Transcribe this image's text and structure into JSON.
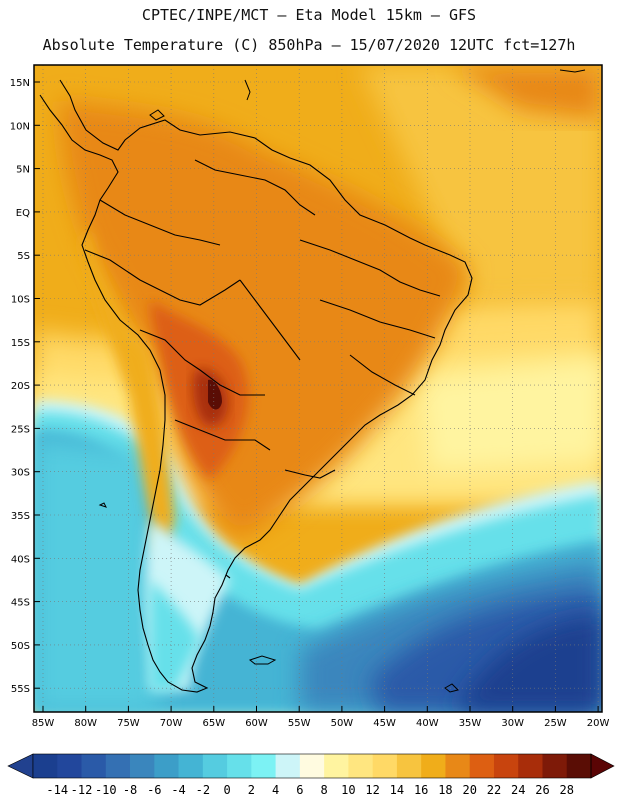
{
  "header": {
    "line1": "CPTEC/INPE/MCT –  Eta Model 15km – GFS",
    "line2": "Absolute Temperature (C) 850hPa – 15/07/2020 12UTC fct=127h"
  },
  "axes": {
    "lat_labels": [
      "15N",
      "10N",
      "5N",
      "EQ",
      "5S",
      "10S",
      "15S",
      "20S",
      "25S",
      "30S",
      "35S",
      "40S",
      "45S",
      "50S",
      "55S"
    ],
    "lon_labels": [
      "85W",
      "80W",
      "75W",
      "70W",
      "65W",
      "60W",
      "55W",
      "50W",
      "45W",
      "40W",
      "35W",
      "30W",
      "25W",
      "20W"
    ]
  },
  "colorbar": {
    "ticks": [
      "-14",
      "-12",
      "-10",
      "-8",
      "-6",
      "-4",
      "-2",
      "0",
      "2",
      "4",
      "6",
      "8",
      "10",
      "12",
      "14",
      "16",
      "18",
      "20",
      "22",
      "24",
      "26",
      "28"
    ],
    "colors": [
      "#1b3f8f",
      "#22479c",
      "#2a5aa8",
      "#3470b3",
      "#3a86bd",
      "#3c9ec8",
      "#44b4d4",
      "#55cce0",
      "#66e0ea",
      "#7cf2f4",
      "#cdf5f8",
      "#fffbe0",
      "#fff4a0",
      "#ffe680",
      "#ffd966",
      "#f7c43f",
      "#f0ad1a",
      "#e88817",
      "#dd5f12",
      "#c8440e",
      "#a82d0a",
      "#7e1a08",
      "#5a0d05"
    ],
    "low_color": "#21418f",
    "high_color": "#5a0505"
  }
}
